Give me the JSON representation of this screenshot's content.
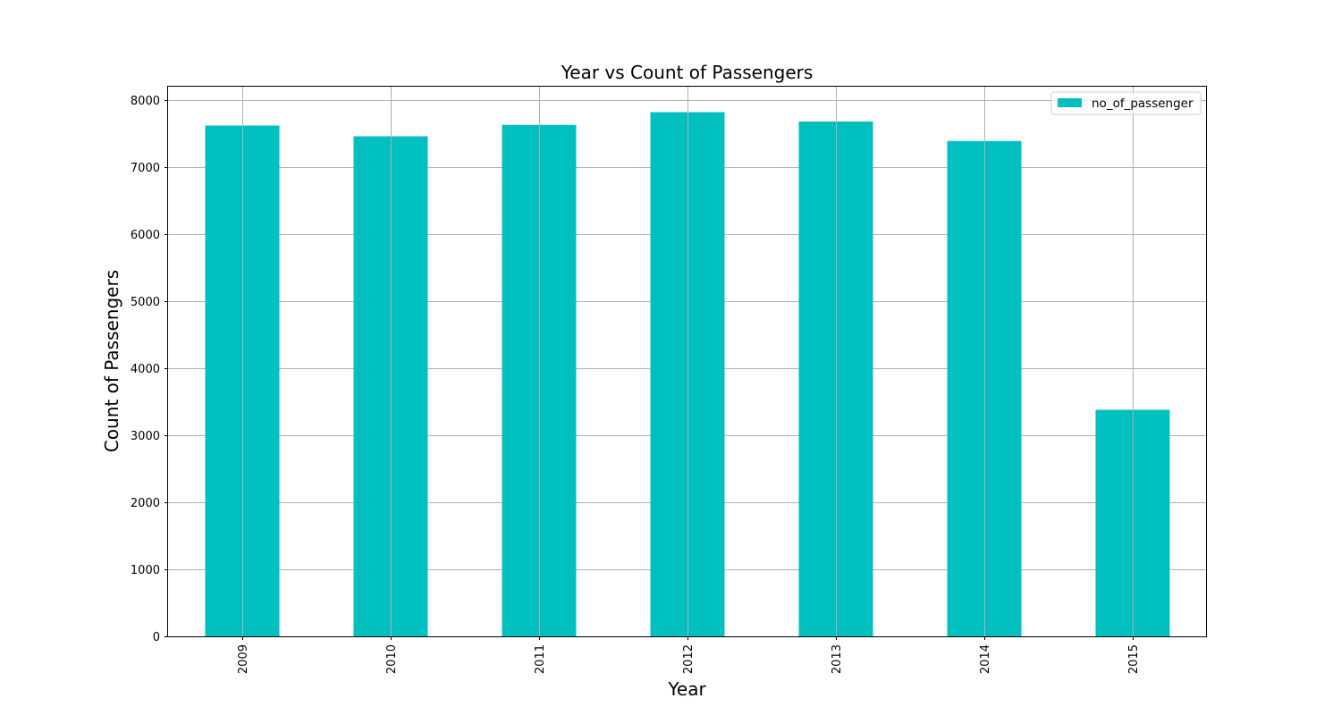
{
  "chart_data": {
    "type": "bar",
    "title": "Year vs Count of Passengers",
    "xlabel": "Year",
    "ylabel": "Count of Passengers",
    "categories": [
      "2009",
      "2010",
      "2011",
      "2012",
      "2013",
      "2014",
      "2015"
    ],
    "series": [
      {
        "name": "no_of_passenger",
        "values": [
          7620,
          7460,
          7630,
          7820,
          7680,
          7390,
          3380
        ]
      }
    ],
    "ylim": [
      0,
      8200
    ],
    "yticks": [
      0,
      1000,
      2000,
      3000,
      4000,
      5000,
      6000,
      7000,
      8000
    ],
    "grid": true,
    "legend_position": "top-right",
    "bar_color": "#00bfbf",
    "grid_color": "#b0b0b0"
  }
}
